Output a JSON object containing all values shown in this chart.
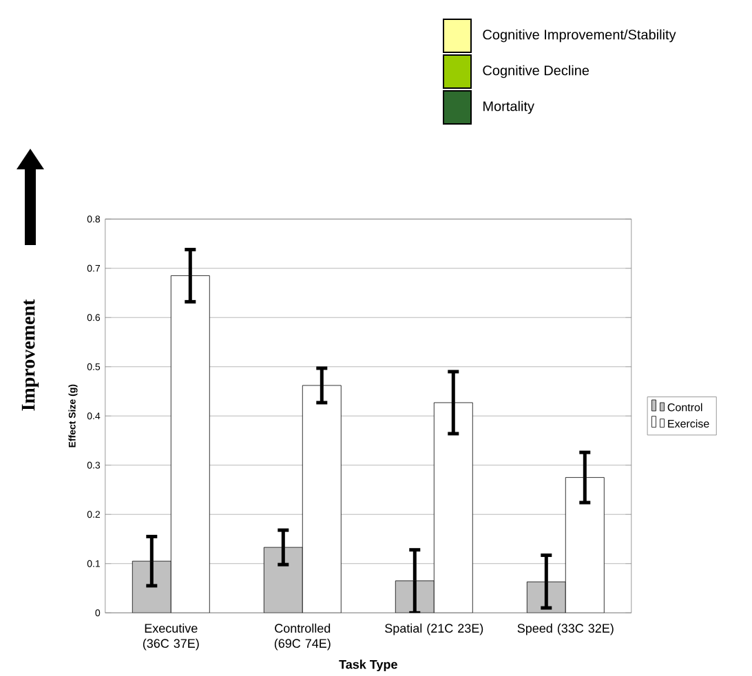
{
  "chart_data": {
    "type": "bar",
    "categories": [
      "Executive (36C 37E)",
      "Controlled (69C 74E)",
      "Spatial (21C 23E)",
      "Speed (33C 32E)"
    ],
    "xlabel": "Task Type",
    "ylabel": "Effect Size (g)",
    "series": [
      {
        "name": "Control",
        "color": "#c0c0c0",
        "values": [
          0.105,
          0.133,
          0.065,
          0.063
        ],
        "errors": [
          [
            0.055,
            0.155
          ],
          [
            0.098,
            0.168
          ],
          [
            0.0,
            0.128
          ],
          [
            0.01,
            0.117
          ]
        ]
      },
      {
        "name": "Exercise",
        "color": "#ffffff",
        "values": [
          0.685,
          0.462,
          0.427,
          0.275
        ],
        "errors": [
          [
            0.632,
            0.738
          ],
          [
            0.427,
            0.497
          ],
          [
            0.364,
            0.49
          ],
          [
            0.224,
            0.326
          ]
        ]
      }
    ],
    "ylim": [
      0,
      0.8
    ],
    "yticks": [
      0,
      0.1,
      0.2,
      0.3,
      0.4,
      0.5,
      0.6,
      0.7,
      0.8
    ],
    "grid": "y",
    "legend": "right",
    "annotations": [
      "Cognitive Improvement/Stability",
      "Cognitive Decline",
      "Mortality",
      "Improvement"
    ]
  }
}
